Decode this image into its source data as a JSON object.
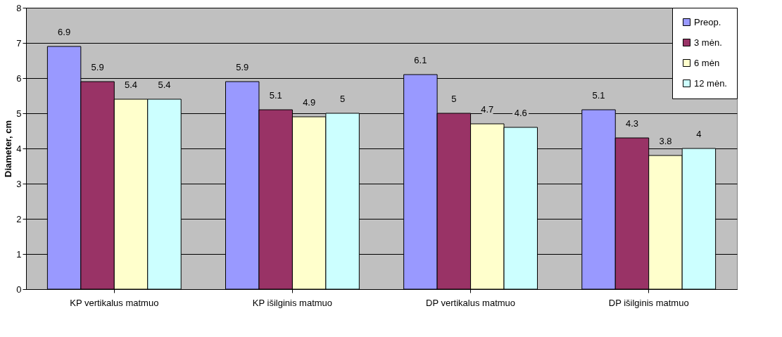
{
  "chart_data": {
    "type": "bar",
    "ylabel": "Diameter, cm",
    "categories": [
      "KP vertikalus matmuo",
      "KP išilginis matmuo",
      "DP vertikalus matmuo",
      "DP išilginis matmuo"
    ],
    "series": [
      {
        "name": "Preop.",
        "color": "#9999ff",
        "values": [
          6.9,
          5.9,
          6.1,
          5.1
        ]
      },
      {
        "name": "3 mėn.",
        "color": "#993366",
        "values": [
          5.9,
          5.1,
          5,
          4.3
        ]
      },
      {
        "name": "6 mėn",
        "color": "#ffffcc",
        "values": [
          5.4,
          4.9,
          4.7,
          3.8
        ]
      },
      {
        "name": "12 mėn.",
        "color": "#ccffff",
        "values": [
          5.4,
          5,
          4.6,
          4
        ]
      }
    ],
    "ylim": [
      0,
      8
    ],
    "yticks": [
      0,
      1,
      2,
      3,
      4,
      5,
      6,
      7,
      8
    ],
    "grid": "y",
    "legend": "top right",
    "data_labels": true
  }
}
